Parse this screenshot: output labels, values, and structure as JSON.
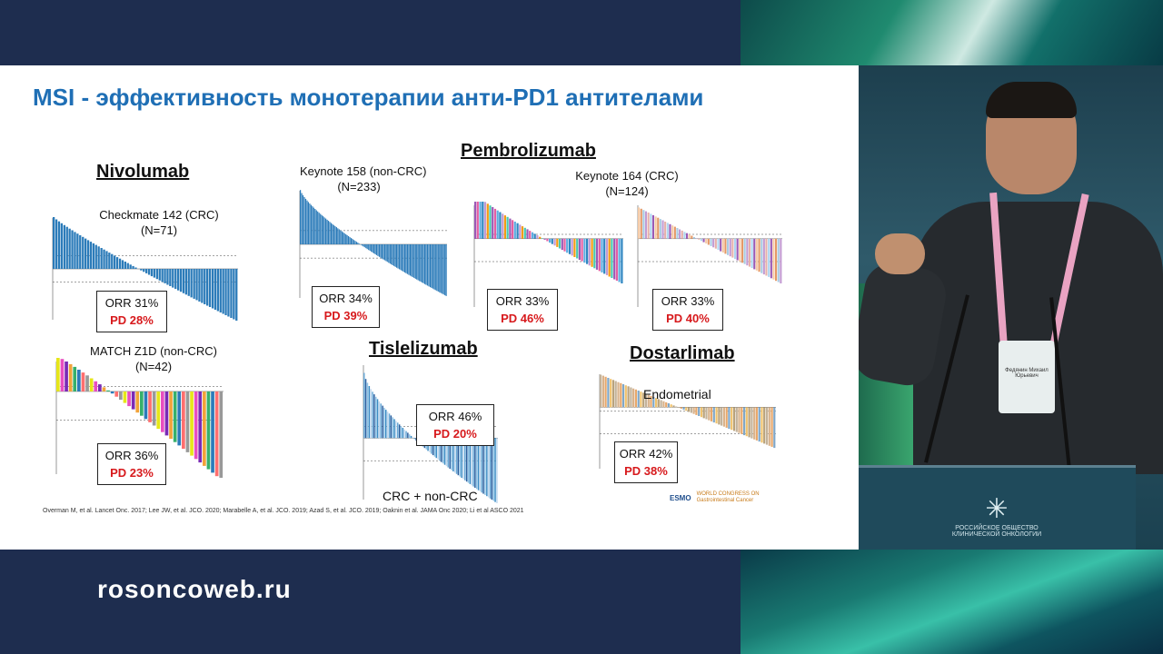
{
  "website": "rosoncoweb.ru",
  "slide": {
    "title": "MSI  - эффективность монотерапии анти-PD1 антителами",
    "references": "Overman M, et al.  Lancet Onc. 2017; Lee JW, et al. JCO. 2020; Marabelle A, et al. JCO. 2019; Azad S, et al. JCO. 2019; Oaknin et al. JAMA Onc 2020; Li et al ASCO 2021",
    "drugs": {
      "nivolumab": "Nivolumab",
      "pembrolizumab": "Pembrolizumab",
      "tislelizumab": "Tislelizumab",
      "dostarlimab": "Dostarlimab"
    },
    "panels": {
      "checkmate": {
        "trial": "Checkmate 142 (CRC)",
        "n": "(N=71)",
        "orr": "ORR 31%",
        "pd": "PD 28%"
      },
      "match": {
        "trial": "MATCH Z1D (non-CRC)",
        "n": "(N=42)",
        "orr": "ORR 36%",
        "pd": "PD 23%"
      },
      "keynote158": {
        "trial": "Keynote 158 (non-CRC)",
        "n": "(N=233)",
        "orr": "ORR 34%",
        "pd": "PD 39%"
      },
      "keynote164": {
        "trial": "Keynote 164 (CRC)",
        "n": "(N=124)",
        "orr_a": "ORR 33%",
        "pd_a": "PD 46%",
        "orr_b": "ORR 33%",
        "pd_b": "PD 40%"
      },
      "tislelizumab": {
        "orr": "ORR 46%",
        "pd": "PD 20%",
        "label": "CRC + non-CRC"
      },
      "dostarlimab": {
        "orr": "ORR 42%",
        "pd": "PD 38%",
        "label": "Endometrial"
      }
    },
    "logos": {
      "esmo": "ESMO",
      "gi": "WORLD CONGRESS ON Gastrointestinal Cancer"
    }
  },
  "speaker_badge": "Федянин Михаил Юрьевич",
  "podium_text": "РОССИЙСКОЕ ОБЩЕСТВО КЛИНИЧЕСКОЙ ОНКОЛОГИИ",
  "colors": {
    "title_blue": "#1f6fb5",
    "pd_red": "#d7191c",
    "bar_blue": "#2b7bb9"
  }
}
